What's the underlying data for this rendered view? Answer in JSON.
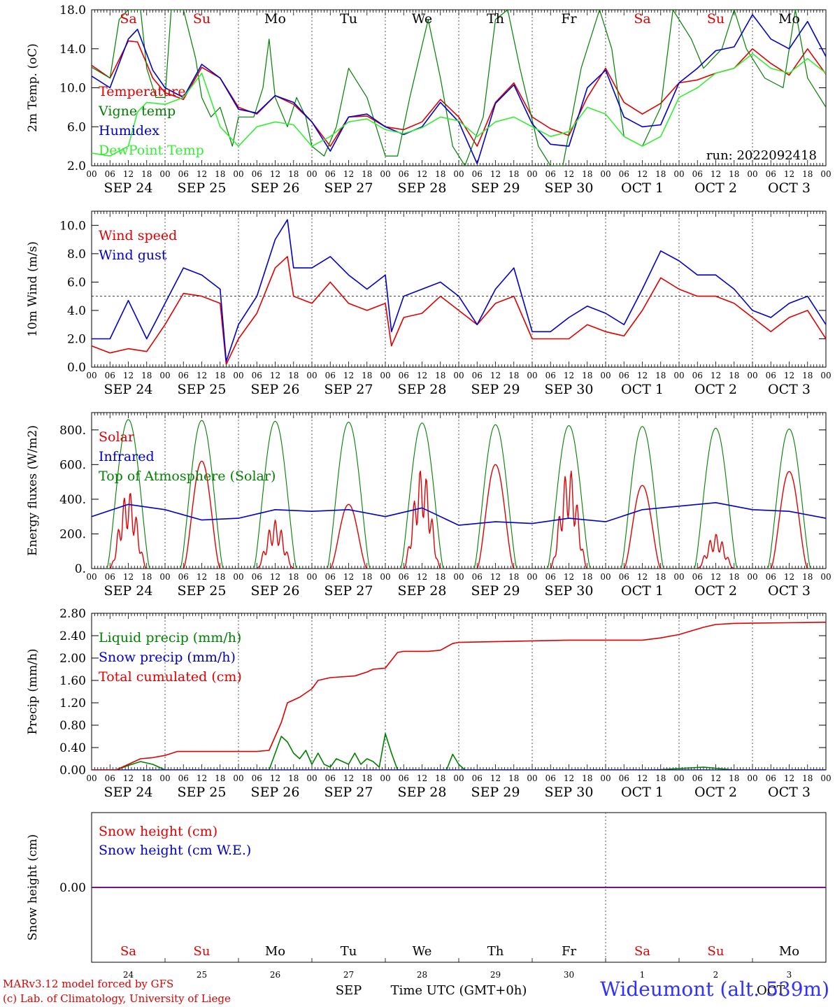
{
  "run_label": "run: 2022092418",
  "date_labels": [
    "SEP 24",
    "SEP 25",
    "SEP 26",
    "SEP 27",
    "SEP 28",
    "SEP 29",
    "SEP 30",
    "OCT  1",
    "OCT  2",
    "OCT  3"
  ],
  "hour_labels": [
    "00",
    "06",
    "12",
    "18"
  ],
  "weekday_labels": [
    "Sa",
    "Su",
    "Mo",
    "Tu",
    "We",
    "Th",
    "Fr",
    "Sa",
    "Su",
    "Mo"
  ],
  "weekday_colors": [
    "#e00000",
    "#e00000",
    "#000000",
    "#000000",
    "#000000",
    "#000000",
    "#000000",
    "#e00000",
    "#e00000",
    "#000000"
  ],
  "day_numbers": [
    "24",
    "25",
    "26",
    "27",
    "28",
    "29",
    "30",
    "1",
    "2",
    "3"
  ],
  "bottom_month_labels": [
    "SEP",
    "OCT"
  ],
  "xlabel": "Time UTC (GMT+0h)",
  "credit_line1": "MARv3.12 model forced by GFS",
  "credit_line2": "(c) Lab. of Climatology, University of Liege",
  "station": "Wideumont (alt. 539m)",
  "chart_data": [
    {
      "type": "line",
      "id": "temp",
      "ylabel": "2m Temp. (oC)",
      "ylim": [
        2,
        18
      ],
      "yticks": [
        2,
        6,
        10,
        14,
        18
      ],
      "ytick_labels": [
        "2.0",
        "6.0",
        "10.0",
        "14.0",
        "18.0"
      ],
      "x_unit": "hours since SEP 24 00 UTC",
      "series": [
        {
          "name": "Temperature",
          "color": "#e00000",
          "x": [
            0,
            6,
            12,
            15,
            20,
            24,
            30,
            36,
            42,
            48,
            54,
            60,
            66,
            72,
            78,
            84,
            90,
            96,
            102,
            108,
            114,
            120,
            126,
            132,
            138,
            144,
            150,
            156,
            162,
            168,
            174,
            180,
            186,
            192,
            198,
            204,
            210,
            216,
            222,
            228,
            234,
            240
          ],
          "values": [
            12.3,
            11,
            14.8,
            14.7,
            11,
            9.5,
            8.8,
            12.1,
            11,
            8,
            7.3,
            9.2,
            8.3,
            6.5,
            4,
            7,
            7.1,
            6,
            5.7,
            6.5,
            8.8,
            7,
            4,
            8.5,
            10.5,
            7,
            5.8,
            5.1,
            9,
            12,
            8.5,
            7.3,
            8.4,
            10.5,
            10.8,
            11.5,
            12,
            14,
            12.5,
            11.3,
            14,
            11.4
          ]
        },
        {
          "name": "Vigne temp",
          "color": "#008000",
          "x": [
            0,
            6,
            9,
            12,
            16,
            18,
            21,
            24,
            26,
            28,
            30,
            34,
            36,
            39,
            42,
            46,
            48,
            53,
            56,
            58,
            60,
            64,
            67,
            70,
            72,
            76,
            80,
            84,
            90,
            96,
            100,
            104,
            110,
            114,
            118,
            122,
            128,
            132,
            136,
            140,
            146,
            150,
            154,
            160,
            166,
            170,
            174,
            180,
            186,
            190,
            196,
            200,
            206,
            210,
            214,
            220,
            226,
            230,
            234,
            240
          ],
          "values": [
            12.1,
            11,
            17,
            18,
            18,
            12,
            9,
            9,
            18,
            18,
            18,
            13,
            9,
            7,
            8,
            4,
            7,
            7,
            10,
            15,
            9,
            6,
            9,
            7,
            4,
            3,
            6,
            12,
            9,
            3,
            3,
            9,
            17,
            11,
            4,
            2,
            7,
            17,
            18,
            12,
            4,
            2,
            2,
            12,
            18,
            14,
            5,
            4,
            8,
            18,
            15,
            12,
            14,
            18,
            14,
            11,
            10,
            18,
            11,
            8
          ]
        },
        {
          "name": "Humidex",
          "color": "#0000cc",
          "x": [
            0,
            6,
            12,
            15,
            20,
            24,
            30,
            36,
            42,
            48,
            54,
            60,
            66,
            72,
            78,
            84,
            90,
            96,
            102,
            108,
            114,
            120,
            126,
            132,
            138,
            144,
            150,
            156,
            162,
            168,
            174,
            180,
            186,
            192,
            198,
            204,
            210,
            216,
            222,
            228,
            234,
            240
          ],
          "values": [
            11.2,
            10,
            15,
            16,
            11.8,
            10,
            9,
            12.4,
            11,
            7.8,
            7.4,
            9.2,
            8.5,
            6.5,
            3.5,
            7,
            7.3,
            6,
            5.2,
            6,
            8.5,
            6.5,
            2.2,
            8.4,
            10.3,
            6.3,
            4.2,
            4,
            10,
            11.8,
            7,
            6,
            6.2,
            10.5,
            12,
            13.8,
            14.2,
            17.5,
            15,
            14,
            16.8,
            13.2
          ]
        },
        {
          "name": "DewPoint Temp",
          "color": "#33ee33",
          "x": [
            0,
            6,
            12,
            15,
            18,
            24,
            30,
            36,
            42,
            48,
            54,
            60,
            66,
            72,
            78,
            84,
            90,
            96,
            102,
            108,
            114,
            120,
            126,
            132,
            138,
            144,
            150,
            156,
            162,
            168,
            174,
            180,
            186,
            192,
            198,
            204,
            210,
            216,
            222,
            228,
            234,
            240
          ],
          "values": [
            3.3,
            3,
            4,
            7.5,
            8.5,
            8.3,
            9,
            11.5,
            6,
            4,
            6,
            6.5,
            6.2,
            4,
            5,
            6.5,
            6.8,
            5.7,
            5.3,
            5.9,
            7,
            6.6,
            5,
            6.5,
            7,
            6,
            5,
            5.5,
            8,
            7.3,
            5,
            4,
            5,
            9,
            10,
            11.5,
            12,
            13.5,
            12,
            11.5,
            13,
            11.5
          ]
        }
      ]
    },
    {
      "type": "line",
      "id": "wind",
      "ylabel": "10m Wind (m/s)",
      "ylim": [
        0,
        11
      ],
      "yticks": [
        0,
        2,
        4,
        6,
        8,
        10
      ],
      "ytick_labels": [
        "0.0",
        "2.0",
        "4.0",
        "6.0",
        "8.0",
        "10.0"
      ],
      "reference_line": 5,
      "x_unit": "hours since SEP 24 00 UTC",
      "series": [
        {
          "name": "Wind speed",
          "color": "#e00000",
          "x": [
            0,
            6,
            12,
            18,
            24,
            30,
            36,
            42,
            44,
            48,
            54,
            60,
            64,
            66,
            72,
            78,
            84,
            90,
            96,
            98,
            102,
            108,
            114,
            120,
            126,
            132,
            138,
            144,
            150,
            156,
            162,
            168,
            174,
            180,
            186,
            192,
            198,
            204,
            210,
            216,
            222,
            228,
            234,
            240
          ],
          "values": [
            1.5,
            1,
            1.3,
            1.1,
            3,
            5.2,
            5,
            4.5,
            0.2,
            2,
            3.8,
            7,
            7.8,
            5,
            4.5,
            6,
            4.5,
            4,
            4.5,
            1.5,
            3.5,
            3.8,
            5,
            4,
            3,
            4.5,
            5,
            2,
            2,
            2,
            3,
            2.5,
            2.2,
            4,
            6.3,
            5.5,
            5,
            5,
            4.5,
            3.5,
            2.5,
            3.5,
            4,
            2
          ]
        },
        {
          "name": "Wind gust",
          "color": "#0000cc",
          "x": [
            0,
            6,
            12,
            18,
            24,
            30,
            36,
            42,
            44,
            48,
            54,
            60,
            64,
            66,
            72,
            78,
            84,
            90,
            96,
            98,
            102,
            108,
            114,
            120,
            126,
            132,
            138,
            144,
            150,
            156,
            162,
            168,
            174,
            180,
            186,
            192,
            198,
            204,
            210,
            216,
            222,
            228,
            234,
            240
          ],
          "values": [
            2,
            2,
            4.7,
            2,
            4.5,
            7,
            6.5,
            5.5,
            0.4,
            3,
            5,
            9,
            10.4,
            7,
            7,
            7.8,
            6.5,
            5.5,
            6.5,
            2.5,
            5,
            5.5,
            6,
            5,
            3,
            5.5,
            7,
            2.5,
            2.5,
            3.5,
            4.3,
            3.8,
            3,
            5.5,
            8.2,
            7.5,
            6.5,
            6.5,
            5.5,
            4,
            3.5,
            4.5,
            5,
            3
          ]
        }
      ]
    },
    {
      "type": "line",
      "id": "energy",
      "ylabel": "Energy fluxes (W/m2)",
      "ylim": [
        0,
        900
      ],
      "yticks": [
        0,
        200,
        400,
        600,
        800
      ],
      "ytick_labels": [
        "0.",
        "200.",
        "400.",
        "600.",
        "800."
      ],
      "x_unit": "hours since SEP 24 00 UTC",
      "toa_peaks": [
        860,
        855,
        850,
        845,
        840,
        830,
        825,
        820,
        810,
        805
      ],
      "solar_peaks": [
        450,
        620,
        280,
        370,
        580,
        600,
        580,
        480,
        200,
        560
      ],
      "series": [
        {
          "name": "Solar",
          "color": "#e00000"
        },
        {
          "name": "Infrared",
          "color": "#0000cc",
          "x": [
            0,
            12,
            24,
            36,
            48,
            60,
            72,
            84,
            96,
            108,
            120,
            132,
            144,
            156,
            168,
            180,
            192,
            204,
            216,
            228,
            240
          ],
          "values": [
            300,
            370,
            340,
            280,
            290,
            340,
            330,
            340,
            300,
            350,
            250,
            270,
            260,
            290,
            270,
            340,
            360,
            380,
            340,
            330,
            290
          ]
        },
        {
          "name": "Top of Atmosphere (Solar)",
          "color": "#008000"
        }
      ]
    },
    {
      "type": "line",
      "id": "precip",
      "ylabel": "Precip (mm/h)",
      "ylim": [
        0,
        2.8
      ],
      "yticks": [
        0,
        0.4,
        0.8,
        1.2,
        1.6,
        2.0,
        2.4,
        2.8
      ],
      "ytick_labels": [
        "0.00",
        "0.40",
        "0.80",
        "1.20",
        "1.60",
        "2.00",
        "2.40",
        "2.80"
      ],
      "x_unit": "hours since SEP 24 00 UTC",
      "series": [
        {
          "name": "Liquid precip (mm/h)",
          "color": "#008000",
          "x": [
            0,
            8,
            12,
            16,
            20,
            24,
            58,
            62,
            64,
            66,
            68,
            70,
            72,
            74,
            76,
            78,
            80,
            82,
            84,
            86,
            88,
            90,
            92,
            94,
            96,
            98,
            100,
            116,
            118,
            120,
            122,
            140,
            184,
            200,
            210,
            240
          ],
          "values": [
            0,
            0,
            0.08,
            0.15,
            0.1,
            0,
            0,
            0.6,
            0.5,
            0.3,
            0.2,
            0.35,
            0.1,
            0.3,
            0.1,
            0.05,
            0.2,
            0.15,
            0.1,
            0.3,
            0.1,
            0.2,
            0.15,
            0.05,
            0.65,
            0.3,
            0,
            0,
            0.28,
            0.1,
            0,
            0,
            0,
            0.05,
            0,
            0
          ]
        },
        {
          "name": "Snow precip (mm/h)",
          "color": "#0000cc",
          "x": [
            0,
            240
          ],
          "values": [
            0,
            0
          ]
        },
        {
          "name": "Total cumulated (cm)",
          "color": "#e00000",
          "x": [
            0,
            8,
            12,
            16,
            20,
            24,
            28,
            54,
            58,
            62,
            64,
            68,
            72,
            74,
            78,
            86,
            90,
            92,
            96,
            100,
            102,
            110,
            114,
            118,
            120,
            156,
            180,
            186,
            192,
            200,
            204,
            210,
            240
          ],
          "values": [
            0,
            0,
            0.1,
            0.2,
            0.22,
            0.26,
            0.33,
            0.33,
            0.35,
            0.85,
            1.2,
            1.3,
            1.45,
            1.6,
            1.65,
            1.68,
            1.75,
            1.8,
            1.82,
            2.1,
            2.12,
            2.12,
            2.14,
            2.26,
            2.28,
            2.32,
            2.32,
            2.36,
            2.42,
            2.55,
            2.6,
            2.62,
            2.64
          ]
        }
      ]
    },
    {
      "type": "line",
      "id": "snow",
      "ylabel": "Snow height (cm)",
      "ylim": [
        -1,
        1
      ],
      "yticks": [
        0
      ],
      "ytick_labels": [
        "0.00"
      ],
      "x_unit": "hours since SEP 24 00 UTC",
      "series": [
        {
          "name": "Snow height (cm)",
          "color": "#e00000",
          "x": [
            0,
            240
          ],
          "values": [
            0,
            0
          ]
        },
        {
          "name": "Snow height (cm W.E.)",
          "color": "#0000cc",
          "x": [
            0,
            240
          ],
          "values": [
            0,
            0
          ]
        }
      ]
    }
  ]
}
